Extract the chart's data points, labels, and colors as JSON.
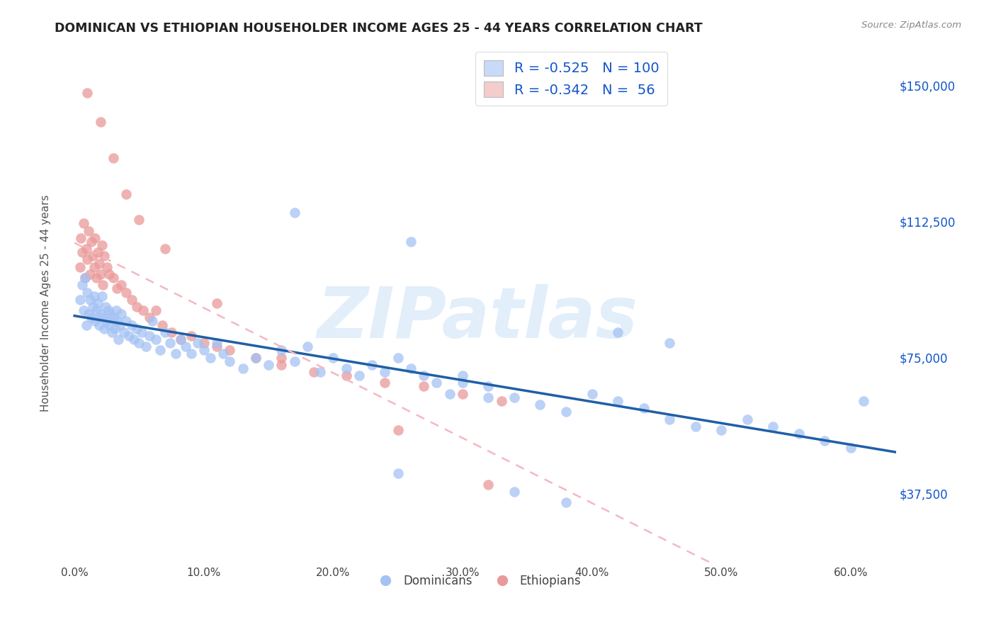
{
  "title": "DOMINICAN VS ETHIOPIAN HOUSEHOLDER INCOME AGES 25 - 44 YEARS CORRELATION CHART",
  "source": "Source: ZipAtlas.com",
  "ylabel": "Householder Income Ages 25 - 44 years",
  "xlabel_ticks": [
    "0.0%",
    "10.0%",
    "20.0%",
    "30.0%",
    "40.0%",
    "50.0%",
    "60.0%"
  ],
  "xlabel_vals": [
    0.0,
    0.1,
    0.2,
    0.3,
    0.4,
    0.5,
    0.6
  ],
  "ylabel_ticks": [
    "$37,500",
    "$75,000",
    "$112,500",
    "$150,000"
  ],
  "ylabel_vals": [
    37500,
    75000,
    112500,
    150000
  ],
  "ylim": [
    18000,
    162000
  ],
  "xlim": [
    -0.012,
    0.635
  ],
  "legend_blue_r": "-0.525",
  "legend_blue_n": "100",
  "legend_pink_r": "-0.342",
  "legend_pink_n": "56",
  "blue_color": "#a4c2f4",
  "blue_line_color": "#1f5fa6",
  "pink_color": "#ea9999",
  "pink_line_color": "#e06666",
  "pink_dash_color": "#f4b8c1",
  "blue_legend_fill": "#c9daf8",
  "pink_legend_fill": "#f4cccc",
  "watermark": "ZIPatlas",
  "legend_text_color": "#1155cc",
  "dominicans_x": [
    0.004,
    0.006,
    0.007,
    0.008,
    0.009,
    0.01,
    0.011,
    0.012,
    0.013,
    0.014,
    0.015,
    0.016,
    0.017,
    0.018,
    0.019,
    0.02,
    0.021,
    0.022,
    0.023,
    0.024,
    0.025,
    0.026,
    0.027,
    0.028,
    0.029,
    0.03,
    0.031,
    0.032,
    0.033,
    0.034,
    0.035,
    0.036,
    0.038,
    0.04,
    0.042,
    0.044,
    0.046,
    0.048,
    0.05,
    0.052,
    0.055,
    0.058,
    0.06,
    0.063,
    0.066,
    0.07,
    0.074,
    0.078,
    0.082,
    0.086,
    0.09,
    0.095,
    0.1,
    0.105,
    0.11,
    0.115,
    0.12,
    0.13,
    0.14,
    0.15,
    0.16,
    0.17,
    0.18,
    0.19,
    0.2,
    0.21,
    0.22,
    0.23,
    0.24,
    0.25,
    0.26,
    0.27,
    0.28,
    0.29,
    0.3,
    0.32,
    0.34,
    0.36,
    0.38,
    0.4,
    0.42,
    0.44,
    0.46,
    0.48,
    0.5,
    0.52,
    0.54,
    0.56,
    0.58,
    0.6,
    0.17,
    0.26,
    0.3,
    0.32,
    0.42,
    0.46,
    0.25,
    0.34,
    0.38,
    0.61
  ],
  "dominicans_y": [
    91000,
    95000,
    88000,
    97000,
    84000,
    93000,
    87000,
    91000,
    86000,
    89000,
    92000,
    85000,
    88000,
    90000,
    84000,
    87000,
    92000,
    86000,
    83000,
    89000,
    85000,
    88000,
    84000,
    87000,
    82000,
    86000,
    83000,
    88000,
    85000,
    80000,
    84000,
    87000,
    82000,
    85000,
    81000,
    84000,
    80000,
    83000,
    79000,
    82000,
    78000,
    81000,
    85000,
    80000,
    77000,
    82000,
    79000,
    76000,
    80000,
    78000,
    76000,
    79000,
    77000,
    75000,
    79000,
    76000,
    74000,
    72000,
    75000,
    73000,
    77000,
    74000,
    78000,
    71000,
    75000,
    72000,
    70000,
    73000,
    71000,
    75000,
    72000,
    70000,
    68000,
    65000,
    70000,
    67000,
    64000,
    62000,
    60000,
    65000,
    63000,
    61000,
    58000,
    56000,
    55000,
    58000,
    56000,
    54000,
    52000,
    50000,
    115000,
    107000,
    68000,
    64000,
    82000,
    79000,
    43000,
    38000,
    35000,
    63000
  ],
  "ethiopians_x": [
    0.004,
    0.005,
    0.006,
    0.007,
    0.008,
    0.009,
    0.01,
    0.011,
    0.012,
    0.013,
    0.014,
    0.015,
    0.016,
    0.017,
    0.018,
    0.019,
    0.02,
    0.021,
    0.022,
    0.023,
    0.025,
    0.027,
    0.03,
    0.033,
    0.036,
    0.04,
    0.044,
    0.048,
    0.053,
    0.058,
    0.063,
    0.068,
    0.075,
    0.082,
    0.09,
    0.1,
    0.11,
    0.12,
    0.14,
    0.16,
    0.185,
    0.21,
    0.24,
    0.27,
    0.3,
    0.33,
    0.01,
    0.02,
    0.03,
    0.04,
    0.05,
    0.07,
    0.11,
    0.16,
    0.25,
    0.32
  ],
  "ethiopians_y": [
    100000,
    108000,
    104000,
    112000,
    97000,
    105000,
    102000,
    110000,
    98000,
    107000,
    103000,
    100000,
    108000,
    97000,
    104000,
    101000,
    98000,
    106000,
    95000,
    103000,
    100000,
    98000,
    97000,
    94000,
    95000,
    93000,
    91000,
    89000,
    88000,
    86000,
    88000,
    84000,
    82000,
    80000,
    81000,
    79000,
    78000,
    77000,
    75000,
    73000,
    71000,
    70000,
    68000,
    67000,
    65000,
    63000,
    148000,
    140000,
    130000,
    120000,
    113000,
    105000,
    90000,
    75000,
    55000,
    40000
  ]
}
